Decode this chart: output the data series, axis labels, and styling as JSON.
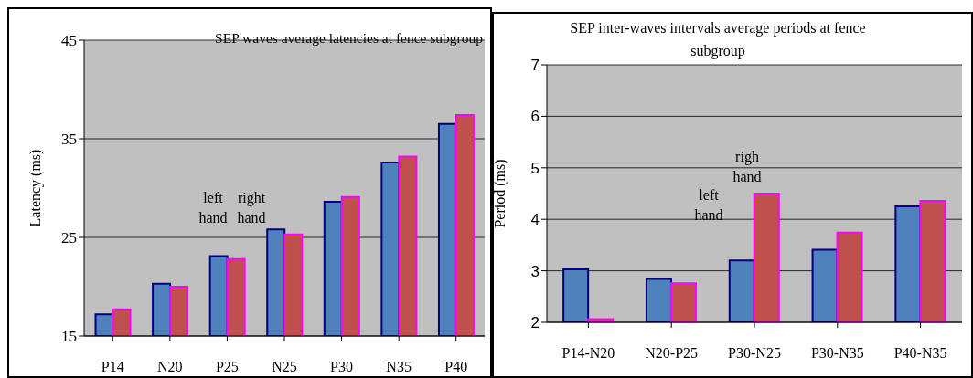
{
  "chart_data": [
    {
      "type": "bar",
      "title": "SEP waves average latencies at fence subgroup",
      "ylabel": "Latency (ms)",
      "categories": [
        "P14",
        "N20",
        "P25",
        "N25",
        "P30",
        "N35",
        "P40"
      ],
      "series": [
        {
          "color": "#4f81bd",
          "values": [
            17.2,
            20.3,
            23.1,
            25.8,
            28.6,
            32.6,
            36.5
          ]
        },
        {
          "color": "#c0504d",
          "values": [
            17.7,
            20.0,
            22.8,
            25.3,
            29.1,
            33.2,
            37.4
          ]
        }
      ],
      "ylim": [
        15,
        45
      ],
      "yticks": [
        15,
        25,
        35,
        45
      ],
      "grid": "y",
      "annotations": [
        "left hand",
        "right hand"
      ]
    },
    {
      "type": "bar",
      "title": "SEP inter-waves intervals average periods at fence subgroup",
      "ylabel": "Period  (ms)",
      "categories": [
        "P14-N20",
        "N20-P25",
        "P30-N25",
        "P30-N35",
        "P40-N35"
      ],
      "series": [
        {
          "color": "#4f81bd",
          "values": [
            3.03,
            2.84,
            3.2,
            3.41,
            4.25
          ]
        },
        {
          "color": "#c0504d",
          "values": [
            2.06,
            2.76,
            4.5,
            3.74,
            4.36
          ]
        }
      ],
      "ylim": [
        2,
        7
      ],
      "yticks": [
        2,
        3,
        4,
        5,
        6,
        7
      ],
      "grid": "y",
      "annotations": [
        "left hand",
        "righ hand"
      ]
    }
  ]
}
